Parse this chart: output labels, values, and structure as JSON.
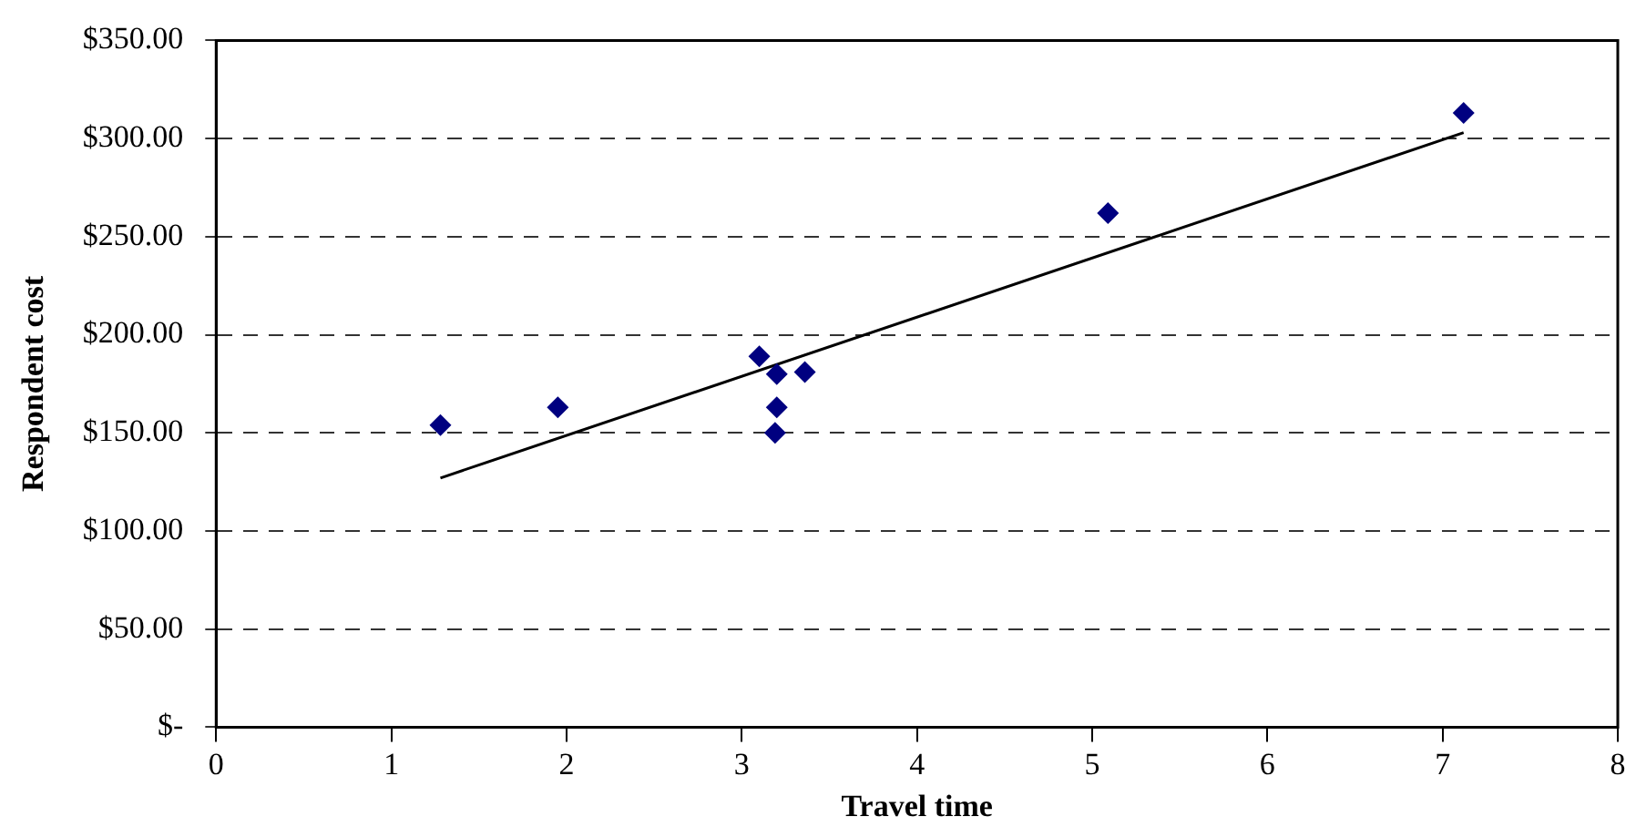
{
  "chart_data": {
    "type": "scatter",
    "xlabel": "Travel time",
    "ylabel": "Respondent cost",
    "x": [
      1.28,
      1.95,
      3.1,
      3.2,
      3.36,
      3.2,
      3.19,
      5.09,
      7.12
    ],
    "series": [
      {
        "color": "#000080",
        "marker": "diamond",
        "values": [
          154,
          163,
          189,
          180,
          181,
          163,
          150,
          262,
          313
        ]
      },
      {
        "type": "line",
        "color": "#000000",
        "marker": "none",
        "x": [
          1.28,
          7.12
        ],
        "values": [
          127,
          303
        ]
      }
    ],
    "xlim": [
      0,
      8
    ],
    "xticks": [
      0,
      1,
      2,
      3,
      4,
      5,
      6,
      7,
      8
    ],
    "ylim": [
      0,
      350
    ],
    "yticks": [
      {
        "value": 0,
        "label": "$-"
      },
      {
        "value": 50,
        "label": "$50.00"
      },
      {
        "value": 100,
        "label": "$100.00"
      },
      {
        "value": 150,
        "label": "$150.00"
      },
      {
        "value": 200,
        "label": "$200.00"
      },
      {
        "value": 250,
        "label": "$250.00"
      },
      {
        "value": 300,
        "label": "$300.00"
      },
      {
        "value": 350,
        "label": "$350.00"
      }
    ],
    "grid": "y",
    "legend": false
  }
}
